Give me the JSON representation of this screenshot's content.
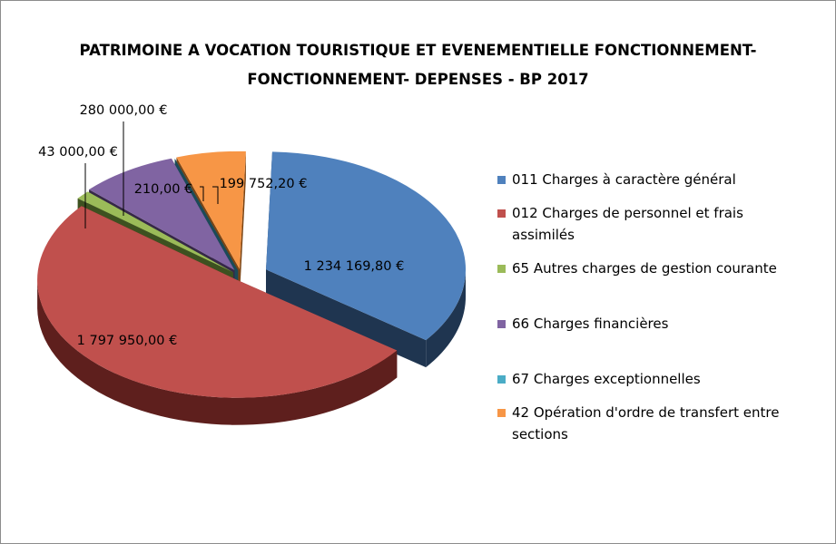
{
  "chart_data": {
    "type": "pie",
    "variant": "3d-exploded",
    "title_lines": [
      "PATRIMOINE A VOCATION TOURISTIQUE ET EVENEMENTIELLE FONCTIONNEMENT-",
      "FONCTIONNEMENT- DEPENSES - BP 2017"
    ],
    "legend_position": "right",
    "series": [
      {
        "name": "011  Charges à caractère général",
        "legend_lines": [
          "011  Charges à caractère général"
        ],
        "value": 1234169.8,
        "label": "1 234 169,80 €",
        "color": "#4f81bd",
        "side": "#1f3550"
      },
      {
        "name": "012 Charges de personnel et frais assimilés",
        "legend_lines": [
          "012 Charges de personnel et frais",
          "assimilés"
        ],
        "value": 1797950.0,
        "label": "1 797 950,00 €",
        "color": "#c0504d",
        "side": "#5e1f1d"
      },
      {
        "name": "65 Autres charges de gestion courante",
        "legend_lines": [
          "65 Autres charges de gestion courante"
        ],
        "value": 43000.0,
        "label": "43 000,00 €",
        "color": "#9bbb59",
        "side": "#3d5120"
      },
      {
        "name": "66 Charges financières",
        "legend_lines": [
          "66 Charges financières"
        ],
        "value": 280000.0,
        "label": "280 000,00 €",
        "color": "#8064a2",
        "side": "#362848"
      },
      {
        "name": "67 Charges exceptionnelles",
        "legend_lines": [
          "67 Charges exceptionnelles"
        ],
        "value": 210.0,
        "label": "210,00 €",
        "color": "#4bacc6",
        "side": "#1b4a58"
      },
      {
        "name": "42 Opération d'ordre de transfert entre sections",
        "legend_lines": [
          "42 Opération d'ordre de transfert entre",
          "sections"
        ],
        "value": 199752.2,
        "label": "199 752,20 €",
        "color": "#f79646",
        "side": "#7a4414"
      }
    ]
  }
}
